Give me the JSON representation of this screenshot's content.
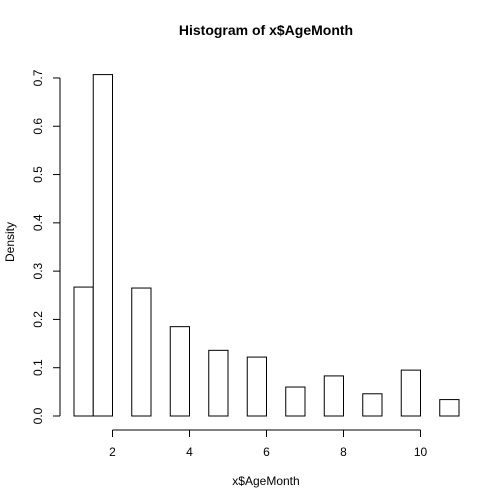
{
  "chart_data": {
    "type": "bar",
    "title": "Histogram of x$AgeMonth",
    "xlabel": "x$AgeMonth",
    "ylabel": "Density",
    "xlim": [
      1,
      11
    ],
    "ylim": [
      0,
      0.7
    ],
    "x_ticks": [
      2,
      4,
      6,
      8,
      10
    ],
    "y_ticks": [
      0.0,
      0.1,
      0.2,
      0.3,
      0.4,
      0.5,
      0.6,
      0.7
    ],
    "y_tick_labels": [
      "0.0",
      "0.1",
      "0.2",
      "0.3",
      "0.4",
      "0.5",
      "0.6",
      "0.7"
    ],
    "bars": [
      {
        "x0": 1.0,
        "x1": 1.5,
        "density": 0.267
      },
      {
        "x0": 1.5,
        "x1": 2.0,
        "density": 0.707
      },
      {
        "x0": 2.5,
        "x1": 3.0,
        "density": 0.265
      },
      {
        "x0": 3.5,
        "x1": 4.0,
        "density": 0.185
      },
      {
        "x0": 4.5,
        "x1": 5.0,
        "density": 0.136
      },
      {
        "x0": 5.5,
        "x1": 6.0,
        "density": 0.122
      },
      {
        "x0": 6.5,
        "x1": 7.0,
        "density": 0.06
      },
      {
        "x0": 7.5,
        "x1": 8.0,
        "density": 0.083
      },
      {
        "x0": 8.5,
        "x1": 9.0,
        "density": 0.046
      },
      {
        "x0": 9.5,
        "x1": 10.0,
        "density": 0.095
      },
      {
        "x0": 10.5,
        "x1": 11.0,
        "density": 0.034
      }
    ],
    "grid": false,
    "legend": "none"
  }
}
